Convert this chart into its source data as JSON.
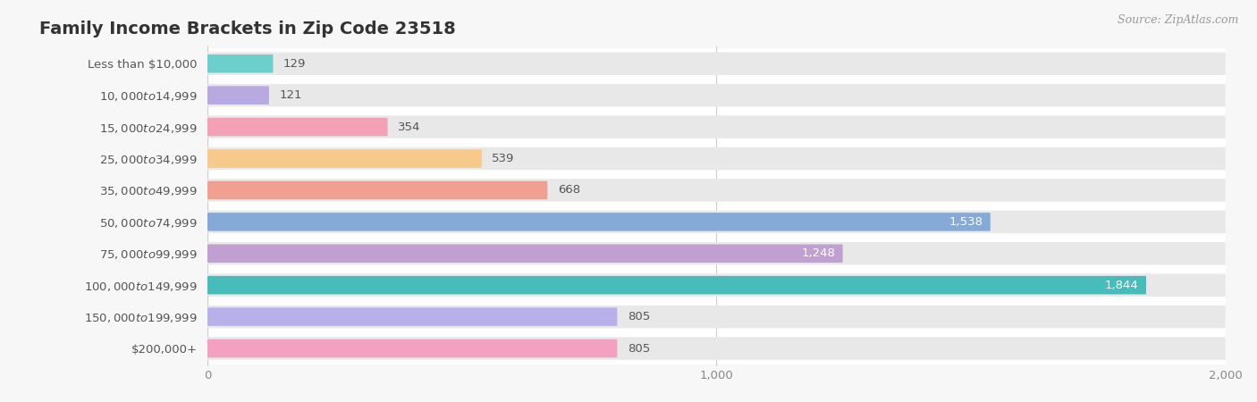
{
  "title": "Family Income Brackets in Zip Code 23518",
  "source": "Source: ZipAtlas.com",
  "categories": [
    "Less than $10,000",
    "$10,000 to $14,999",
    "$15,000 to $24,999",
    "$25,000 to $34,999",
    "$35,000 to $49,999",
    "$50,000 to $74,999",
    "$75,000 to $99,999",
    "$100,000 to $149,999",
    "$150,000 to $199,999",
    "$200,000+"
  ],
  "values": [
    129,
    121,
    354,
    539,
    668,
    1538,
    1248,
    1844,
    805,
    805
  ],
  "bar_colors": [
    "#6DCFCC",
    "#B8A9E0",
    "#F4A0B5",
    "#F7C98A",
    "#F0A090",
    "#85AAD8",
    "#C0A0D0",
    "#48BCBA",
    "#B8B0E8",
    "#F4A0C0"
  ],
  "bar_label_colors": [
    "#555555",
    "#555555",
    "#555555",
    "#555555",
    "#555555",
    "#ffffff",
    "#ffffff",
    "#ffffff",
    "#555555",
    "#555555"
  ],
  "value_inside": [
    false,
    false,
    false,
    false,
    false,
    true,
    true,
    true,
    false,
    false
  ],
  "xlim": [
    0,
    2000
  ],
  "background_color": "#f7f7f7",
  "bar_bg_color": "#e8e8e8",
  "title_fontsize": 14,
  "label_fontsize": 9.5,
  "value_fontsize": 9.5,
  "xtick_labels": [
    "0",
    "1,000",
    "2,000"
  ],
  "xtick_values": [
    0,
    1000,
    2000
  ]
}
